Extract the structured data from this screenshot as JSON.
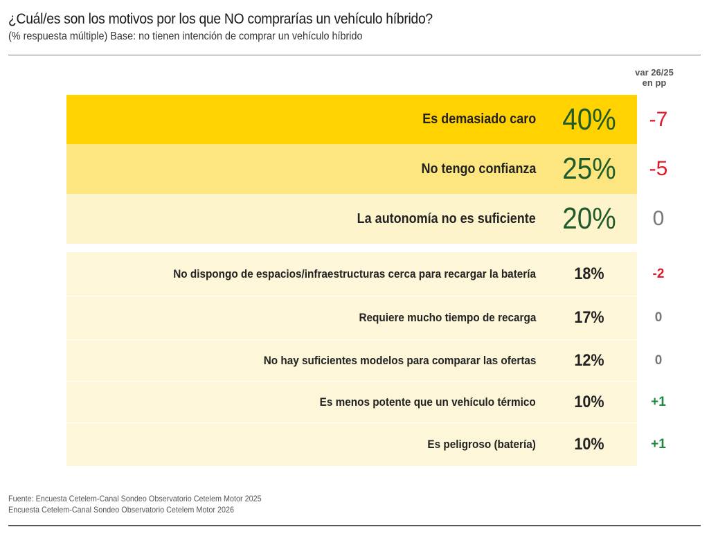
{
  "chart_data": {
    "type": "table",
    "title": "¿Cuál/es son los motivos por los que NO comprarías un vehículo híbrido?",
    "subtitle": "(% respuesta múltiple) Base: no tienen intención de comprar un vehículo híbrido",
    "var_header_line1": "var 26/25",
    "var_header_line2": "en pp",
    "rows": [
      {
        "label": "Es demasiado caro",
        "value": 40,
        "value_label": "40%",
        "var": -7,
        "var_label": "-7",
        "group": "top",
        "fill": "#ffd200"
      },
      {
        "label": "No tengo confianza",
        "value": 25,
        "value_label": "25%",
        "var": -5,
        "var_label": "-5",
        "group": "top",
        "fill": "#fde57f"
      },
      {
        "label": "La autonomía no es suficiente",
        "value": 20,
        "value_label": "20%",
        "var": 0,
        "var_label": "0",
        "group": "top",
        "fill": "#fdf4cc"
      },
      {
        "label": "No dispongo de espacios/infraestructuras cerca para recargar la batería",
        "value": 18,
        "value_label": "18%",
        "var": -2,
        "var_label": "-2",
        "group": "other",
        "fill": "#fdf6d8"
      },
      {
        "label": "Requiere mucho tiempo de recarga",
        "value": 17,
        "value_label": "17%",
        "var": 0,
        "var_label": "0",
        "group": "other",
        "fill": "#fdf6d8"
      },
      {
        "label": "No hay suficientes modelos para comparar las ofertas",
        "value": 12,
        "value_label": "12%",
        "var": 0,
        "var_label": "0",
        "group": "other",
        "fill": "#fdf6d8"
      },
      {
        "label": "Es menos potente que un vehículo térmico",
        "value": 10,
        "value_label": "10%",
        "var": 1,
        "var_label": "+1",
        "group": "other",
        "fill": "#fdf6d8"
      },
      {
        "label": "Es peligroso (batería)",
        "value": 10,
        "value_label": "10%",
        "var": 1,
        "var_label": "+1",
        "group": "other",
        "fill": "#fdf6d8"
      }
    ],
    "var_colors": {
      "negative": "#e0192b",
      "zero": "#777777",
      "positive": "#1a8a3a"
    },
    "units": "%"
  },
  "footer": {
    "line1": "Fuente: Encuesta Cetelem-Canal Sondeo Observatorio Cetelem Motor 2025",
    "line2": "Encuesta Cetelem-Canal Sondeo Observatorio Cetelem Motor 2026"
  }
}
